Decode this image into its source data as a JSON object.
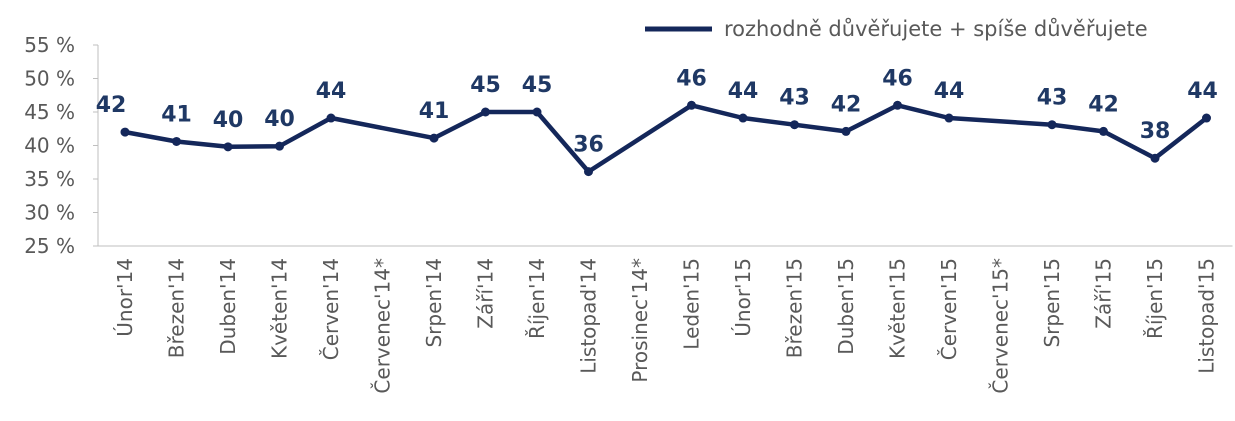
{
  "chart_data": {
    "type": "line",
    "title": "",
    "xlabel": "",
    "ylabel": "",
    "ylim": [
      25,
      55
    ],
    "y_ticks": [
      "25 %",
      "30 %",
      "35 %",
      "40 %",
      "45 %",
      "50 %",
      "55 %"
    ],
    "legend_position": "top-right",
    "grid": false,
    "categories": [
      "Únor'14",
      "Březen'14",
      "Duben'14",
      "Květen'14",
      "Červen'14",
      "Červenec'14*",
      "Srpen'14",
      "Září'14",
      "Říjen'14",
      "Listopad'14",
      "Prosinec'14*",
      "Leden'15",
      "Únor'15",
      "Březen'15",
      "Duben'15",
      "Květen'15",
      "Červen'15",
      "Červenec'15*",
      "Srpen'15",
      "Září'15",
      "Říjen'15",
      "Listopad'15"
    ],
    "series": [
      {
        "name": "rozhodně důvěřujete + spíše důvěřujete",
        "color": "#14275a",
        "values": [
          42,
          41,
          40,
          40,
          44,
          null,
          41,
          45,
          45,
          36,
          null,
          46,
          44,
          43,
          42,
          46,
          44,
          null,
          43,
          42,
          38,
          44
        ],
        "plotted": [
          42,
          40.6,
          39.8,
          39.9,
          44.1,
          null,
          41.1,
          45,
          45,
          36.1,
          null,
          46,
          44.1,
          43.1,
          42.1,
          46,
          44.1,
          null,
          43.1,
          42.1,
          38.1,
          44.1
        ],
        "labels": [
          "42",
          "41",
          "40",
          "40",
          "44",
          "",
          "41",
          "45",
          "45",
          "36",
          "",
          "46",
          "44",
          "43",
          "42",
          "46",
          "44",
          "",
          "43",
          "42",
          "38",
          "44"
        ]
      }
    ]
  }
}
